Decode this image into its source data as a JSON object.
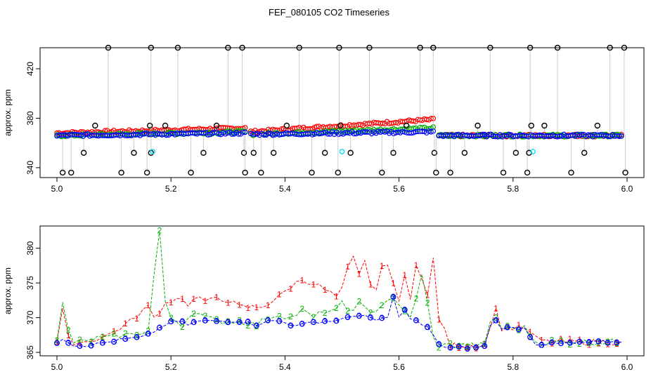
{
  "title": "FEF_080105  CO2 Timeseries",
  "colors": {
    "series1": "#ff0000",
    "series2": "#00b000",
    "series3": "#0000ff",
    "outlier": "#000000",
    "flag": "#00e5ee",
    "link": "#9a9a9a"
  },
  "chart_data": [
    {
      "type": "scatter",
      "title": "",
      "xlabel": "",
      "ylabel": "approx. ppm",
      "xlim": [
        5.0,
        6.0
      ],
      "ylim": [
        332,
        437
      ],
      "xticks": [
        "5.0",
        "5.2",
        "5.4",
        "5.6",
        "5.8",
        "6.0"
      ],
      "xtick_values": [
        5.0,
        5.2,
        5.4,
        5.6,
        5.8,
        6.0
      ],
      "yticks": [
        "340",
        "380",
        "420"
      ],
      "ytick_values": [
        340,
        380,
        420
      ],
      "series": [
        {
          "name": "1",
          "color": "red",
          "segments": [
            [
              5.0,
              5.33,
              368,
              372
            ],
            [
              5.34,
              5.66,
              369,
              379
            ],
            [
              5.67,
              5.75,
              366,
              366
            ],
            [
              5.75,
              5.99,
              366,
              366
            ]
          ]
        },
        {
          "name": "2",
          "color": "green",
          "segments": [
            [
              5.0,
              5.33,
              366,
              369
            ],
            [
              5.34,
              5.66,
              367,
              372
            ],
            [
              5.67,
              5.75,
              366,
              366
            ],
            [
              5.75,
              5.99,
              366,
              366
            ]
          ]
        },
        {
          "name": "3",
          "color": "blue",
          "segments": [
            [
              5.0,
              5.33,
              366,
              368
            ],
            [
              5.34,
              5.66,
              367,
              369
            ],
            [
              5.67,
              5.75,
              366,
              366
            ],
            [
              5.75,
              5.99,
              366,
              366
            ]
          ]
        }
      ],
      "outliers": [
        {
          "x": 5.01,
          "y": 336
        },
        {
          "x": 5.025,
          "y": 336
        },
        {
          "x": 5.047,
          "y": 352
        },
        {
          "x": 5.067,
          "y": 374
        },
        {
          "x": 5.09,
          "y": 437
        },
        {
          "x": 5.113,
          "y": 336
        },
        {
          "x": 5.135,
          "y": 352
        },
        {
          "x": 5.158,
          "y": 336
        },
        {
          "x": 5.163,
          "y": 374
        },
        {
          "x": 5.165,
          "y": 437
        },
        {
          "x": 5.165,
          "y": 352
        },
        {
          "x": 5.19,
          "y": 374
        },
        {
          "x": 5.212,
          "y": 437
        },
        {
          "x": 5.235,
          "y": 336
        },
        {
          "x": 5.257,
          "y": 352
        },
        {
          "x": 5.28,
          "y": 374
        },
        {
          "x": 5.3,
          "y": 437
        },
        {
          "x": 5.325,
          "y": 437
        },
        {
          "x": 5.328,
          "y": 352
        },
        {
          "x": 5.33,
          "y": 336
        },
        {
          "x": 5.345,
          "y": 352
        },
        {
          "x": 5.358,
          "y": 336
        },
        {
          "x": 5.38,
          "y": 352
        },
        {
          "x": 5.403,
          "y": 374
        },
        {
          "x": 5.425,
          "y": 437
        },
        {
          "x": 5.447,
          "y": 336
        },
        {
          "x": 5.47,
          "y": 352
        },
        {
          "x": 5.493,
          "y": 336
        },
        {
          "x": 5.495,
          "y": 437
        },
        {
          "x": 5.497,
          "y": 374
        },
        {
          "x": 5.515,
          "y": 352
        },
        {
          "x": 5.548,
          "y": 437
        },
        {
          "x": 5.57,
          "y": 336
        },
        {
          "x": 5.59,
          "y": 352
        },
        {
          "x": 5.613,
          "y": 374
        },
        {
          "x": 5.637,
          "y": 437
        },
        {
          "x": 5.66,
          "y": 437
        },
        {
          "x": 5.662,
          "y": 352
        },
        {
          "x": 5.665,
          "y": 336
        },
        {
          "x": 5.69,
          "y": 336
        },
        {
          "x": 5.715,
          "y": 352
        },
        {
          "x": 5.738,
          "y": 374
        },
        {
          "x": 5.76,
          "y": 437
        },
        {
          "x": 5.783,
          "y": 336
        },
        {
          "x": 5.805,
          "y": 352
        },
        {
          "x": 5.825,
          "y": 336
        },
        {
          "x": 5.828,
          "y": 352
        },
        {
          "x": 5.83,
          "y": 437
        },
        {
          "x": 5.832,
          "y": 374
        },
        {
          "x": 5.855,
          "y": 374
        },
        {
          "x": 5.878,
          "y": 437
        },
        {
          "x": 5.902,
          "y": 336
        },
        {
          "x": 5.925,
          "y": 352
        },
        {
          "x": 5.948,
          "y": 374
        },
        {
          "x": 5.97,
          "y": 437
        },
        {
          "x": 5.995,
          "y": 437
        },
        {
          "x": 5.997,
          "y": 336
        }
      ],
      "flags": [
        {
          "x": 5.168,
          "y": 353
        },
        {
          "x": 5.5,
          "y": 353
        },
        {
          "x": 5.835,
          "y": 353
        }
      ]
    },
    {
      "type": "line",
      "title": "",
      "xlabel": "",
      "ylabel": "approx. ppm",
      "xlim": [
        5.0,
        6.0
      ],
      "ylim": [
        364.5,
        383.2
      ],
      "xticks": [
        "5.0",
        "5.2",
        "5.4",
        "5.6",
        "5.8",
        "6.0"
      ],
      "xtick_values": [
        5.0,
        5.2,
        5.4,
        5.6,
        5.8,
        6.0
      ],
      "yticks": [
        "365",
        "370",
        "375",
        "380"
      ],
      "ytick_values": [
        365,
        370,
        375,
        380
      ],
      "legend_markers": [
        "1",
        "2",
        "3"
      ],
      "series": [
        {
          "name": "1",
          "color": "red",
          "marker": "1",
          "points": [
            [
              5.0,
              366.5
            ],
            [
              5.01,
              371
            ],
            [
              5.02,
              367
            ],
            [
              5.03,
              366.5
            ],
            [
              5.05,
              366.5
            ],
            [
              5.07,
              367
            ],
            [
              5.09,
              367.5
            ],
            [
              5.11,
              368.5
            ],
            [
              5.13,
              369.5
            ],
            [
              5.15,
              371
            ],
            [
              5.16,
              371.5
            ],
            [
              5.17,
              370
            ],
            [
              5.19,
              372
            ],
            [
              5.21,
              373
            ],
            [
              5.23,
              372
            ],
            [
              5.25,
              373
            ],
            [
              5.26,
              372
            ],
            [
              5.28,
              373
            ],
            [
              5.3,
              372.5
            ],
            [
              5.32,
              371.5
            ],
            [
              5.35,
              371.5
            ],
            [
              5.37,
              372
            ],
            [
              5.39,
              373
            ],
            [
              5.41,
              374.5
            ],
            [
              5.43,
              375.5
            ],
            [
              5.45,
              375
            ],
            [
              5.47,
              374
            ],
            [
              5.49,
              373
            ],
            [
              5.5,
              374
            ],
            [
              5.51,
              377
            ],
            [
              5.52,
              378.5
            ],
            [
              5.53,
              376
            ],
            [
              5.54,
              378
            ],
            [
              5.55,
              375
            ],
            [
              5.56,
              374
            ],
            [
              5.57,
              377
            ],
            [
              5.58,
              378
            ],
            [
              5.59,
              375
            ],
            [
              5.6,
              372
            ],
            [
              5.61,
              376
            ],
            [
              5.62,
              373
            ],
            [
              5.63,
              378
            ],
            [
              5.65,
              373
            ],
            [
              5.66,
              378.5
            ],
            [
              5.67,
              370
            ],
            [
              5.69,
              366
            ],
            [
              5.72,
              366
            ],
            [
              5.75,
              366
            ],
            [
              5.76,
              369
            ],
            [
              5.77,
              371
            ],
            [
              5.78,
              368.5
            ],
            [
              5.8,
              368.5
            ],
            [
              5.82,
              368.5
            ],
            [
              5.84,
              367
            ],
            [
              5.86,
              366.5
            ],
            [
              5.9,
              366.5
            ],
            [
              5.95,
              366.5
            ],
            [
              5.99,
              366.5
            ]
          ]
        },
        {
          "name": "2",
          "color": "green",
          "marker": "2",
          "points": [
            [
              5.0,
              366.5
            ],
            [
              5.01,
              372
            ],
            [
              5.02,
              368
            ],
            [
              5.03,
              366.5
            ],
            [
              5.05,
              366.5
            ],
            [
              5.07,
              367
            ],
            [
              5.09,
              367
            ],
            [
              5.11,
              367.5
            ],
            [
              5.13,
              367.5
            ],
            [
              5.15,
              368
            ],
            [
              5.16,
              368
            ],
            [
              5.17,
              376
            ],
            [
              5.18,
              382.5
            ],
            [
              5.19,
              372
            ],
            [
              5.2,
              370
            ],
            [
              5.22,
              369
            ],
            [
              5.24,
              371
            ],
            [
              5.26,
              370
            ],
            [
              5.28,
              369.5
            ],
            [
              5.3,
              369.5
            ],
            [
              5.32,
              369.5
            ],
            [
              5.35,
              369
            ],
            [
              5.37,
              370
            ],
            [
              5.39,
              370.5
            ],
            [
              5.41,
              370
            ],
            [
              5.43,
              371
            ],
            [
              5.45,
              370
            ],
            [
              5.47,
              371
            ],
            [
              5.49,
              371
            ],
            [
              5.5,
              372
            ],
            [
              5.51,
              371
            ],
            [
              5.53,
              372
            ],
            [
              5.55,
              370.5
            ],
            [
              5.57,
              372
            ],
            [
              5.59,
              373
            ],
            [
              5.6,
              371.5
            ],
            [
              5.62,
              370
            ],
            [
              5.64,
              376
            ],
            [
              5.65,
              372
            ],
            [
              5.66,
              367
            ],
            [
              5.67,
              366
            ],
            [
              5.69,
              366
            ],
            [
              5.72,
              366
            ],
            [
              5.75,
              366
            ],
            [
              5.76,
              369.5
            ],
            [
              5.77,
              370
            ],
            [
              5.78,
              368.5
            ],
            [
              5.8,
              368.5
            ],
            [
              5.82,
              368.5
            ],
            [
              5.84,
              366.5
            ],
            [
              5.86,
              366.5
            ],
            [
              5.9,
              366.5
            ],
            [
              5.95,
              366.5
            ],
            [
              5.99,
              366.5
            ]
          ]
        },
        {
          "name": "3",
          "color": "blue",
          "marker": "3",
          "points": [
            [
              5.0,
              366.5
            ],
            [
              5.01,
              367
            ],
            [
              5.02,
              366.5
            ],
            [
              5.03,
              366
            ],
            [
              5.05,
              366
            ],
            [
              5.07,
              366.2
            ],
            [
              5.09,
              366.5
            ],
            [
              5.11,
              366.8
            ],
            [
              5.13,
              367
            ],
            [
              5.15,
              367.2
            ],
            [
              5.16,
              367.5
            ],
            [
              5.17,
              368
            ],
            [
              5.18,
              368.5
            ],
            [
              5.19,
              369
            ],
            [
              5.21,
              369.5
            ],
            [
              5.23,
              369
            ],
            [
              5.25,
              369.5
            ],
            [
              5.27,
              369.5
            ],
            [
              5.29,
              369.5
            ],
            [
              5.31,
              369.5
            ],
            [
              5.32,
              369.5
            ],
            [
              5.35,
              369
            ],
            [
              5.37,
              369.5
            ],
            [
              5.39,
              369.5
            ],
            [
              5.41,
              369
            ],
            [
              5.43,
              369
            ],
            [
              5.45,
              369.3
            ],
            [
              5.47,
              369.5
            ],
            [
              5.49,
              369.5
            ],
            [
              5.5,
              370
            ],
            [
              5.52,
              370
            ],
            [
              5.54,
              370.5
            ],
            [
              5.56,
              369.5
            ],
            [
              5.58,
              370
            ],
            [
              5.59,
              373
            ],
            [
              5.6,
              370
            ],
            [
              5.61,
              371
            ],
            [
              5.62,
              370
            ],
            [
              5.64,
              369
            ],
            [
              5.65,
              368.5
            ],
            [
              5.66,
              367.5
            ],
            [
              5.67,
              366
            ],
            [
              5.69,
              365.7
            ],
            [
              5.72,
              365.7
            ],
            [
              5.75,
              365.8
            ],
            [
              5.76,
              369
            ],
            [
              5.77,
              369.5
            ],
            [
              5.78,
              368.5
            ],
            [
              5.8,
              368.5
            ],
            [
              5.82,
              368.5
            ],
            [
              5.84,
              366.2
            ],
            [
              5.86,
              366.2
            ],
            [
              5.9,
              366.3
            ],
            [
              5.95,
              366.5
            ],
            [
              5.99,
              366.5
            ]
          ]
        }
      ]
    }
  ]
}
